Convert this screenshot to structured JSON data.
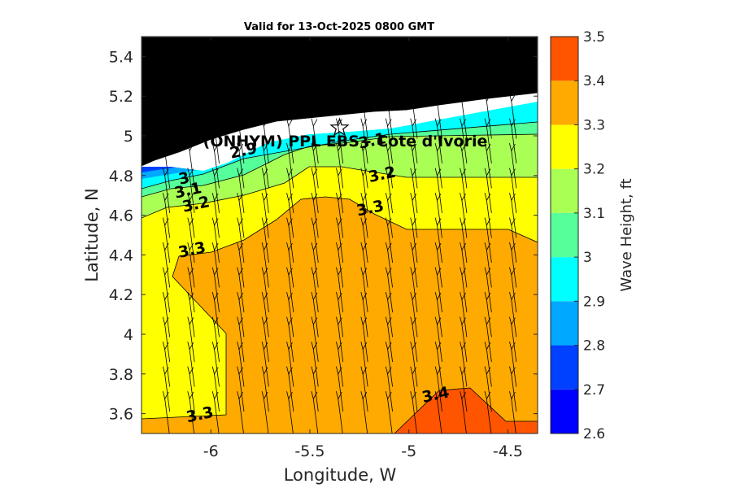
{
  "chart_data": {
    "type": "filled-contour",
    "title": "Valid for 13-Oct-2025 0800 GMT",
    "xlabel": "Longitude, W",
    "ylabel": "Latitude, N",
    "xlim": [
      -6.35,
      -4.35
    ],
    "ylim": [
      3.5,
      5.5
    ],
    "xticks": [
      -6,
      -5.5,
      -5,
      -4.5
    ],
    "xtick_labels": [
      "-6",
      "-5.5",
      "-5",
      "-4.5"
    ],
    "yticks": [
      3.6,
      3.8,
      4,
      4.2,
      4.4,
      4.6,
      4.8,
      5,
      5.2,
      5.4
    ],
    "ytick_labels": [
      "3.6",
      "3.8",
      "4",
      "4.2",
      "4.4",
      "4.6",
      "4.8",
      "5",
      "5.2",
      "5.4"
    ],
    "colorbar": {
      "label": "Wave Height, ft",
      "levels": [
        2.6,
        2.7,
        2.8,
        2.9,
        3.0,
        3.1,
        3.2,
        3.3,
        3.4,
        3.5
      ],
      "level_labels": [
        "2.6",
        "2.7",
        "2.8",
        "2.9",
        "3",
        "3.1",
        "3.2",
        "3.3",
        "3.4",
        "3.5"
      ],
      "colors": [
        "#0000ff",
        "#0040ff",
        "#00a8ff",
        "#00ffff",
        "#55ff99",
        "#aaff55",
        "#ffff00",
        "#ffaa00",
        "#ff5500"
      ]
    },
    "station": {
      "name": "(ONHYM) PPL EBS  - Cote d'Ivorie",
      "lon": -5.35,
      "lat": 5.04
    },
    "contour_labels": [
      {
        "text": "2.9",
        "lon": -5.83,
        "lat": 4.9
      },
      {
        "text": "3.1",
        "lon": -5.18,
        "lat": 4.95
      },
      {
        "text": "3",
        "lon": -6.13,
        "lat": 4.76
      },
      {
        "text": "3.1",
        "lon": -6.11,
        "lat": 4.7
      },
      {
        "text": "3.2",
        "lon": -6.07,
        "lat": 4.63
      },
      {
        "text": "3.2",
        "lon": -5.13,
        "lat": 4.78
      },
      {
        "text": "3.3",
        "lon": -5.19,
        "lat": 4.61
      },
      {
        "text": "3.3",
        "lon": -6.09,
        "lat": 4.4
      },
      {
        "text": "3.3",
        "lon": -6.05,
        "lat": 3.57
      },
      {
        "text": "3.4",
        "lon": -4.86,
        "lat": 3.67
      }
    ],
    "coast_lat_at_lon": {
      "lon": [
        -6.35,
        -6.25,
        -6.1,
        -5.9,
        -5.7,
        -5.5,
        -5.3,
        -5.1,
        -4.9,
        -4.7,
        -4.5,
        -4.35
      ],
      "lat": [
        4.85,
        4.9,
        4.96,
        5.03,
        5.06,
        5.09,
        5.11,
        5.14,
        5.15,
        5.17,
        5.18,
        5.21
      ]
    },
    "wave_direction": "toward north-northwest"
  }
}
